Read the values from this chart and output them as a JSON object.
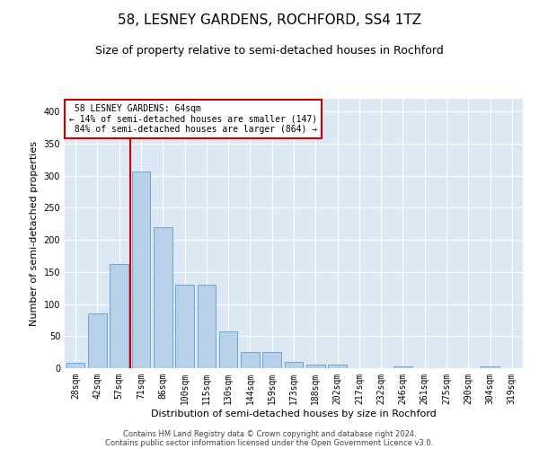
{
  "title": "58, LESNEY GARDENS, ROCHFORD, SS4 1TZ",
  "subtitle": "Size of property relative to semi-detached houses in Rochford",
  "xlabel": "Distribution of semi-detached houses by size in Rochford",
  "ylabel": "Number of semi-detached properties",
  "categories": [
    "28sqm",
    "42sqm",
    "57sqm",
    "71sqm",
    "86sqm",
    "100sqm",
    "115sqm",
    "130sqm",
    "144sqm",
    "159sqm",
    "173sqm",
    "188sqm",
    "202sqm",
    "217sqm",
    "232sqm",
    "246sqm",
    "261sqm",
    "275sqm",
    "290sqm",
    "304sqm",
    "319sqm"
  ],
  "values": [
    8,
    85,
    162,
    307,
    220,
    130,
    130,
    58,
    25,
    25,
    10,
    5,
    5,
    0,
    0,
    3,
    0,
    0,
    0,
    3,
    0
  ],
  "bar_color": "#b8d0e8",
  "bar_edge_color": "#5a9fd4",
  "marker_label": "58 LESNEY GARDENS: 64sqm",
  "pct_smaller": "14% of semi-detached houses are smaller (147)",
  "pct_larger": "84% of semi-detached houses are larger (864)",
  "marker_line_color": "#cc0000",
  "annotation_box_color": "#cc0000",
  "footer1": "Contains HM Land Registry data © Crown copyright and database right 2024.",
  "footer2": "Contains public sector information licensed under the Open Government Licence v3.0.",
  "ylim": [
    0,
    420
  ],
  "yticks": [
    0,
    50,
    100,
    150,
    200,
    250,
    300,
    350,
    400
  ],
  "title_fontsize": 11,
  "subtitle_fontsize": 9,
  "axis_label_fontsize": 8,
  "tick_fontsize": 7,
  "background_color": "#dce9f5"
}
